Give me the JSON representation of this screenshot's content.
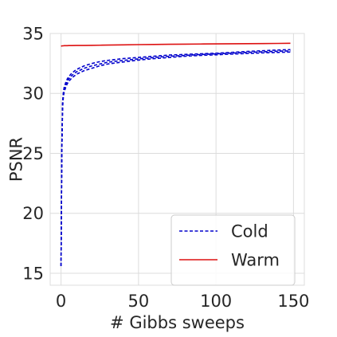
{
  "chart_data": {
    "type": "line",
    "title": "",
    "xlabel": "# Gibbs sweeps",
    "ylabel": "PSNR",
    "xlim": [
      -7,
      157
    ],
    "ylim": [
      14,
      35
    ],
    "xticks": [
      0,
      50,
      100,
      150
    ],
    "yticks": [
      15,
      20,
      25,
      30,
      35
    ],
    "grid": true,
    "legend_position": "bottom-right",
    "x": [
      0,
      0.5,
      1,
      1.5,
      2,
      3,
      4,
      5,
      7,
      10,
      15,
      20,
      25,
      30,
      40,
      50,
      60,
      70,
      80,
      90,
      100,
      110,
      120,
      130,
      140,
      148
    ],
    "series": [
      {
        "name": "Cold",
        "legend": true,
        "color": "#0000cc",
        "dash": "dashed",
        "values": [
          15.6,
          25.5,
          29.3,
          30.1,
          30.5,
          30.9,
          31.2,
          31.4,
          31.7,
          32.0,
          32.3,
          32.5,
          32.65,
          32.75,
          32.9,
          33.0,
          33.1,
          33.2,
          33.25,
          33.3,
          33.35,
          33.42,
          33.5,
          33.56,
          33.62,
          33.65
        ]
      },
      {
        "name": "",
        "legend": false,
        "color": "#0000cc",
        "dash": "dashed",
        "values": [
          15.6,
          25.3,
          29.1,
          29.9,
          30.3,
          30.7,
          31.0,
          31.2,
          31.5,
          31.8,
          32.1,
          32.3,
          32.45,
          32.6,
          32.75,
          32.88,
          33.0,
          33.1,
          33.17,
          33.24,
          33.3,
          33.36,
          33.42,
          33.47,
          33.52,
          33.55
        ]
      },
      {
        "name": "",
        "legend": false,
        "color": "#0000cc",
        "dash": "dashed",
        "values": [
          15.6,
          25.0,
          28.8,
          29.7,
          30.1,
          30.5,
          30.8,
          31.0,
          31.3,
          31.6,
          31.9,
          32.1,
          32.3,
          32.45,
          32.62,
          32.78,
          32.9,
          33.0,
          33.1,
          33.17,
          33.22,
          33.28,
          33.33,
          33.38,
          33.42,
          33.45
        ]
      },
      {
        "name": "Warm",
        "legend": true,
        "color": "#dd1111",
        "dash": "solid",
        "values": [
          33.95,
          33.96,
          33.97,
          33.97,
          33.98,
          33.98,
          33.98,
          33.99,
          33.99,
          34.0,
          34.0,
          34.01,
          34.02,
          34.03,
          34.05,
          34.07,
          34.08,
          34.1,
          34.11,
          34.12,
          34.13,
          34.14,
          34.15,
          34.16,
          34.17,
          34.18
        ]
      }
    ]
  }
}
